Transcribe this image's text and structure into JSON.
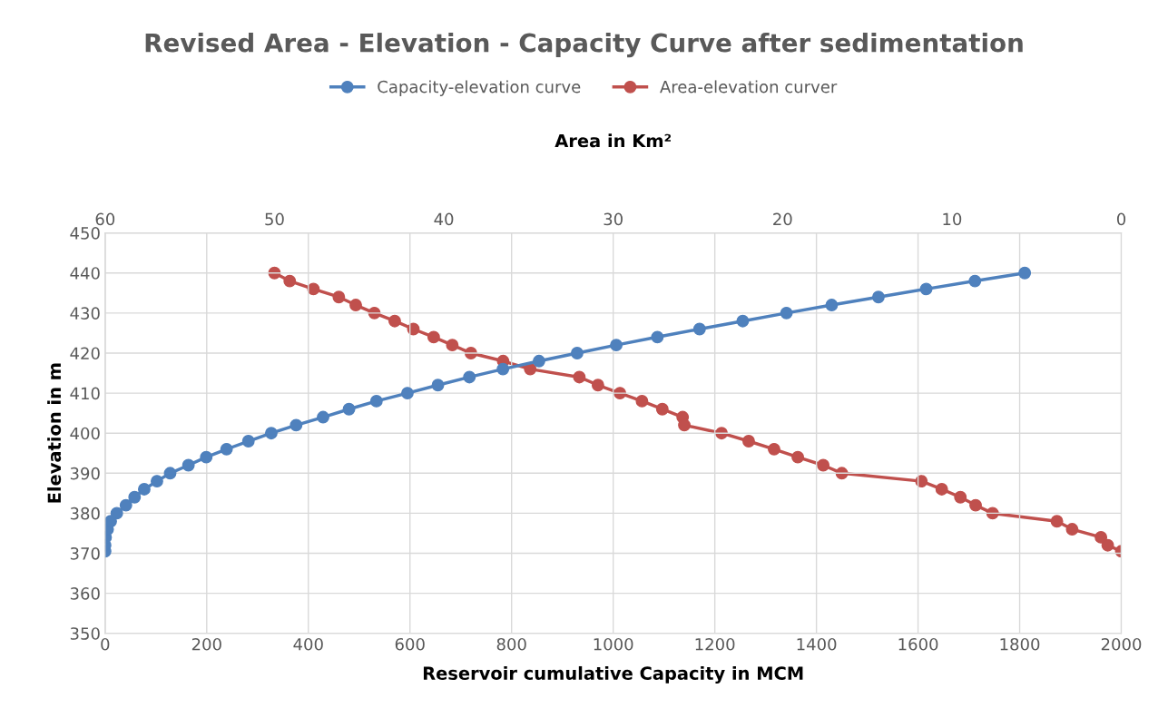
{
  "chart_data": {
    "type": "line",
    "title": "Revised Area - Elevation - Capacity Curve after sedimentation",
    "xlabel": "Reservoir cumulative Capacity in MCM",
    "ylabel": "Elevation in m",
    "x2label": "Area in Km²",
    "xlim": [
      0,
      2000
    ],
    "xticks": [
      0,
      200,
      400,
      600,
      800,
      1000,
      1200,
      1400,
      1600,
      1800,
      2000
    ],
    "x2lim": [
      60,
      0
    ],
    "x2ticks": [
      60,
      50,
      40,
      30,
      20,
      10,
      0
    ],
    "ylim": [
      350,
      450
    ],
    "yticks": [
      350,
      360,
      370,
      380,
      390,
      400,
      410,
      420,
      430,
      440,
      450
    ],
    "grid": true,
    "legend": "top",
    "marker": "circle",
    "line_style": "solid",
    "series": [
      {
        "name": "Capacity-elevation curve",
        "color": "#4f81bd",
        "x": [
          0,
          0,
          1,
          5,
          11,
          23,
          41,
          58,
          77,
          102,
          128,
          164,
          199,
          239,
          282,
          327,
          376,
          429,
          480,
          534,
          595,
          655,
          717,
          783,
          854,
          929,
          1006,
          1087,
          1170,
          1255,
          1341,
          1430,
          1522,
          1616,
          1712,
          1810
        ],
        "values": [
          370.5,
          372,
          374,
          376,
          378,
          380,
          382,
          384,
          386,
          388,
          390,
          392,
          394,
          396,
          398,
          400,
          402,
          404,
          406,
          408,
          410,
          412,
          414,
          416,
          418,
          420,
          422,
          424,
          426,
          428,
          430,
          432,
          434,
          436,
          438,
          440
        ]
      },
      {
        "name": "Area-elevation curver",
        "color": "#c0504d",
        "axis": "x2",
        "x": [
          50.0,
          49.1,
          47.7,
          46.2,
          45.2,
          44.1,
          42.9,
          41.8,
          40.6,
          39.5,
          38.4,
          36.5,
          34.9,
          32.0,
          30.9,
          29.6,
          28.3,
          27.1,
          25.9,
          25.8,
          23.6,
          22.0,
          20.5,
          19.1,
          17.6,
          16.5,
          11.8,
          10.6,
          9.5,
          8.6,
          7.6,
          3.8,
          2.9,
          1.2,
          0.8,
          0
        ],
        "values": [
          440,
          438,
          436,
          434,
          432,
          430,
          428,
          426,
          424,
          422,
          420,
          418,
          416,
          414,
          412,
          410,
          408,
          406,
          404,
          402,
          400,
          398,
          396,
          394,
          392,
          390,
          388,
          386,
          384,
          382,
          380,
          378,
          376,
          374,
          372,
          370.5
        ]
      }
    ]
  }
}
